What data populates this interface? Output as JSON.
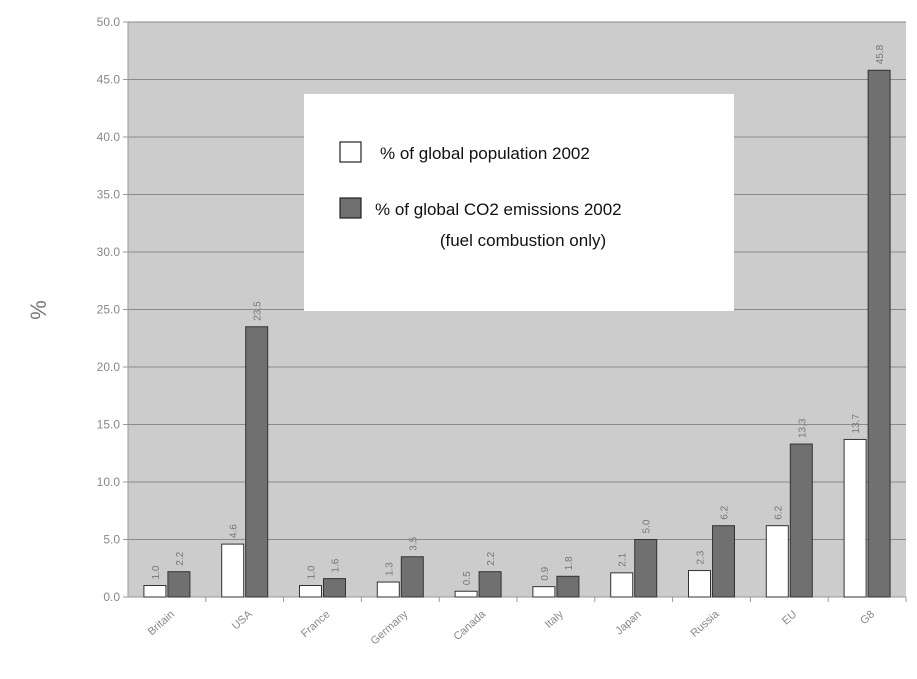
{
  "chart_data": {
    "type": "bar",
    "title": "",
    "xlabel": "",
    "ylabel": "%",
    "ylim": [
      0,
      50
    ],
    "yticks": [
      "0.0",
      "5.0",
      "10.0",
      "15.0",
      "20.0",
      "25.0",
      "30.0",
      "35.0",
      "40.0",
      "45.0",
      "50.0"
    ],
    "grid": true,
    "legend_position": "top-center",
    "categories": [
      "Britain",
      "USA",
      "France",
      "Germany",
      "Canada",
      "Italy",
      "Japan",
      "Russia",
      "EU",
      "G8"
    ],
    "series": [
      {
        "name": "% of global population 2002",
        "color": "#ffffff",
        "values": [
          1.0,
          4.6,
          1.0,
          1.3,
          0.5,
          0.9,
          2.1,
          2.3,
          6.2,
          13.7
        ],
        "labels": [
          "1.0",
          "4.6",
          "1.0",
          "1.3",
          "0.5",
          "0.9",
          "2.1",
          "2.3",
          "6.2",
          "13.7"
        ]
      },
      {
        "name": "% of global CO2 emissions 2002",
        "name_note": "(fuel combustion only)",
        "color": "#707070",
        "values": [
          2.2,
          23.5,
          1.6,
          3.5,
          2.2,
          1.8,
          5.0,
          6.2,
          13.3,
          45.8
        ],
        "labels": [
          "2.2",
          "23.5",
          "1.6",
          "3.5",
          "2.2",
          "1.8",
          "5.0",
          "6.2",
          "13.3",
          "45.8"
        ]
      }
    ]
  }
}
